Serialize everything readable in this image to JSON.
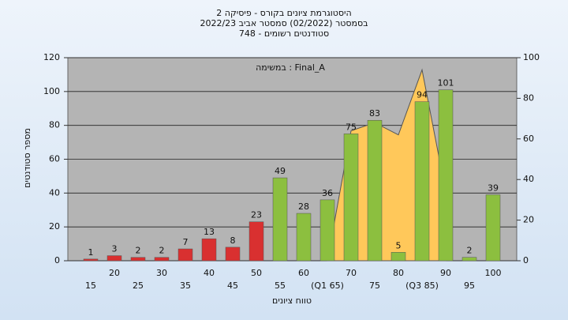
{
  "chart_data": {
    "type": "bar",
    "title": "היסטוגרמת ציונים בקורס - פיסיקה 2",
    "subtitle": "בסמסטר  (02/2022)  סמסטר אביב 2022/23",
    "subtitle2": "סטודנטים רשומים - 748",
    "annotation": "במשימה : Final_A",
    "y_label": "מספר סטודנטים",
    "x_label": "טווח ציונים",
    "categories": [
      "15",
      "20",
      "25",
      "30",
      "35",
      "40",
      "45",
      "50",
      "55",
      "60",
      "(Q1 65)",
      "70",
      "75",
      "80",
      "(Q3 85)",
      "90",
      "95",
      "100"
    ],
    "values": [
      1,
      3,
      2,
      2,
      7,
      13,
      8,
      23,
      49,
      28,
      36,
      75,
      83,
      5,
      94,
      101,
      2,
      39
    ],
    "colors": [
      "#d93030",
      "#d93030",
      "#d93030",
      "#d93030",
      "#d93030",
      "#d93030",
      "#d93030",
      "#d93030",
      "#8cbf3f",
      "#8cbf3f",
      "#8cbf3f",
      "#8cbf3f",
      "#8cbf3f",
      "#8cbf3f",
      "#8cbf3f",
      "#8cbf3f",
      "#8cbf3f",
      "#8cbf3f"
    ],
    "area": {
      "axis": "y2",
      "color": "#ffc85a",
      "values": [
        null,
        null,
        null,
        null,
        null,
        null,
        null,
        null,
        null,
        null,
        0,
        64,
        68,
        62,
        94,
        34,
        null,
        null
      ]
    },
    "ylim": [
      0,
      120
    ],
    "yticks": [
      0,
      20,
      40,
      60,
      80,
      100,
      120
    ],
    "y2lim": [
      0,
      100
    ],
    "y2ticks": [
      0,
      20,
      40,
      60,
      80,
      100
    ],
    "grid": true
  }
}
